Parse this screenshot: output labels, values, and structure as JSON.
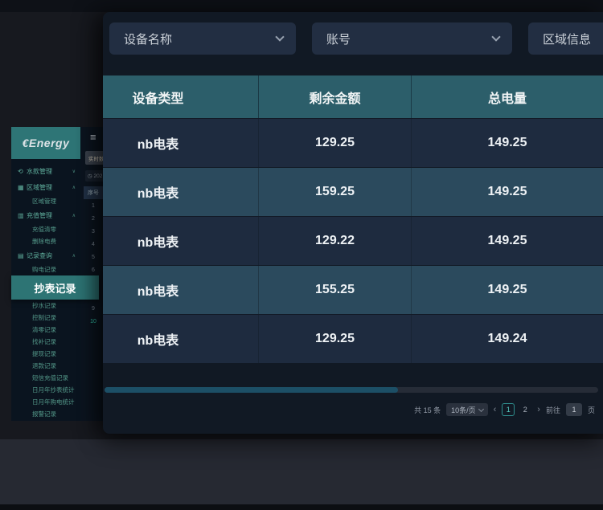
{
  "logo": {
    "text": "€Energy"
  },
  "sidebar": {
    "items": [
      {
        "label": "水款管理",
        "type": "group",
        "icon": "refresh-icon",
        "glyph": "⟲",
        "chevron": "∨"
      },
      {
        "label": "区域管理",
        "type": "group",
        "icon": "region-icon",
        "glyph": "▦",
        "chevron": "∧"
      },
      {
        "label": "区域管理",
        "type": "sub"
      },
      {
        "label": "充值管理",
        "type": "group",
        "icon": "recharge-card-icon",
        "glyph": "▥",
        "chevron": "∧"
      },
      {
        "label": "充值清零",
        "type": "sub"
      },
      {
        "label": "删除电费",
        "type": "sub"
      },
      {
        "label": "记录查询",
        "type": "group",
        "icon": "records-icon",
        "glyph": "▤",
        "chevron": "∧"
      },
      {
        "label": "购电记录",
        "type": "sub"
      },
      {
        "label": "抄表记录",
        "type": "selected"
      },
      {
        "label": "抄水记录",
        "type": "sub"
      },
      {
        "label": "控制记录",
        "type": "sub"
      },
      {
        "label": "清零记录",
        "type": "sub"
      },
      {
        "label": "找补记录",
        "type": "sub"
      },
      {
        "label": "提现记录",
        "type": "sub"
      },
      {
        "label": "退款记录",
        "type": "sub"
      },
      {
        "label": "短信充值记录",
        "type": "sub"
      },
      {
        "label": "日月年抄表统计",
        "type": "sub"
      },
      {
        "label": "日月年购电统计",
        "type": "sub"
      },
      {
        "label": "报警记录",
        "type": "sub"
      }
    ]
  },
  "under_strip": {
    "hamburger_glyph": "≡",
    "button_label": "实时数",
    "date_value": "◷ 202",
    "mini_table": {
      "header": "序号",
      "rows": [
        {
          "v": "1",
          "state": "plain"
        },
        {
          "v": "2",
          "state": "plain"
        },
        {
          "v": "3",
          "state": "plain"
        },
        {
          "v": "4",
          "state": "plain"
        },
        {
          "v": "5",
          "state": "plain"
        },
        {
          "v": "6",
          "state": "plain"
        },
        {
          "v": "7",
          "state": "plain"
        },
        {
          "v": "8",
          "state": "plain"
        },
        {
          "v": "9",
          "state": "plain"
        },
        {
          "v": "10",
          "state": "active"
        }
      ]
    }
  },
  "filters": {
    "device_name_label": "设备名称",
    "account_label": "账号",
    "region_label": "区域信息"
  },
  "table": {
    "columns": [
      "设备类型",
      "剩余金额",
      "总电量"
    ],
    "rows": [
      {
        "device_type": "nb电表",
        "remaining_amount": "129.25",
        "total_power": "149.25"
      },
      {
        "device_type": "nb电表",
        "remaining_amount": "159.25",
        "total_power": "149.25"
      },
      {
        "device_type": "nb电表",
        "remaining_amount": "129.22",
        "total_power": "149.25"
      },
      {
        "device_type": "nb电表",
        "remaining_amount": "155.25",
        "total_power": "149.25"
      },
      {
        "device_type": "nb电表",
        "remaining_amount": "129.25",
        "total_power": "149.24"
      }
    ]
  },
  "pagination": {
    "total_label": "共 15 条",
    "page_size_label": "10条/页",
    "prev_glyph": "‹",
    "pages": [
      {
        "label": "1",
        "state": "current"
      },
      {
        "label": "2",
        "state": "plain"
      }
    ],
    "next_glyph": "›",
    "goto_label": "前往",
    "goto_value": "1",
    "unit_label": "页"
  },
  "colors": {
    "accent_teal": "#2d7474",
    "header_teal": "#2c5e6a",
    "row_dark": "#1e2b3f",
    "row_light": "#2b4a5d",
    "active_number": "#35cdb0"
  }
}
